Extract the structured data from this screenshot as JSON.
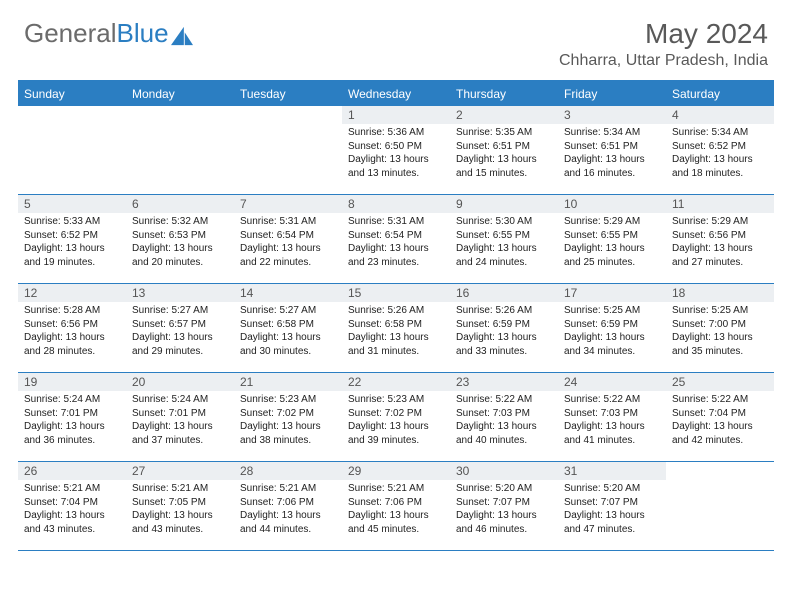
{
  "logo": {
    "text_a": "General",
    "text_b": "Blue"
  },
  "title": {
    "month": "May 2024",
    "location": "Chharra, Uttar Pradesh, India"
  },
  "colors": {
    "accent": "#2b7ec2",
    "header_text": "#ffffff",
    "daynum_bg": "#eceff2",
    "body_text": "#222222",
    "title_text": "#595959",
    "logo_gray": "#6b6b6b"
  },
  "day_headers": [
    "Sunday",
    "Monday",
    "Tuesday",
    "Wednesday",
    "Thursday",
    "Friday",
    "Saturday"
  ],
  "weeks": [
    [
      {
        "day": "",
        "lines": []
      },
      {
        "day": "",
        "lines": []
      },
      {
        "day": "",
        "lines": []
      },
      {
        "day": "1",
        "lines": [
          "Sunrise: 5:36 AM",
          "Sunset: 6:50 PM",
          "Daylight: 13 hours",
          "and 13 minutes."
        ]
      },
      {
        "day": "2",
        "lines": [
          "Sunrise: 5:35 AM",
          "Sunset: 6:51 PM",
          "Daylight: 13 hours",
          "and 15 minutes."
        ]
      },
      {
        "day": "3",
        "lines": [
          "Sunrise: 5:34 AM",
          "Sunset: 6:51 PM",
          "Daylight: 13 hours",
          "and 16 minutes."
        ]
      },
      {
        "day": "4",
        "lines": [
          "Sunrise: 5:34 AM",
          "Sunset: 6:52 PM",
          "Daylight: 13 hours",
          "and 18 minutes."
        ]
      }
    ],
    [
      {
        "day": "5",
        "lines": [
          "Sunrise: 5:33 AM",
          "Sunset: 6:52 PM",
          "Daylight: 13 hours",
          "and 19 minutes."
        ]
      },
      {
        "day": "6",
        "lines": [
          "Sunrise: 5:32 AM",
          "Sunset: 6:53 PM",
          "Daylight: 13 hours",
          "and 20 minutes."
        ]
      },
      {
        "day": "7",
        "lines": [
          "Sunrise: 5:31 AM",
          "Sunset: 6:54 PM",
          "Daylight: 13 hours",
          "and 22 minutes."
        ]
      },
      {
        "day": "8",
        "lines": [
          "Sunrise: 5:31 AM",
          "Sunset: 6:54 PM",
          "Daylight: 13 hours",
          "and 23 minutes."
        ]
      },
      {
        "day": "9",
        "lines": [
          "Sunrise: 5:30 AM",
          "Sunset: 6:55 PM",
          "Daylight: 13 hours",
          "and 24 minutes."
        ]
      },
      {
        "day": "10",
        "lines": [
          "Sunrise: 5:29 AM",
          "Sunset: 6:55 PM",
          "Daylight: 13 hours",
          "and 25 minutes."
        ]
      },
      {
        "day": "11",
        "lines": [
          "Sunrise: 5:29 AM",
          "Sunset: 6:56 PM",
          "Daylight: 13 hours",
          "and 27 minutes."
        ]
      }
    ],
    [
      {
        "day": "12",
        "lines": [
          "Sunrise: 5:28 AM",
          "Sunset: 6:56 PM",
          "Daylight: 13 hours",
          "and 28 minutes."
        ]
      },
      {
        "day": "13",
        "lines": [
          "Sunrise: 5:27 AM",
          "Sunset: 6:57 PM",
          "Daylight: 13 hours",
          "and 29 minutes."
        ]
      },
      {
        "day": "14",
        "lines": [
          "Sunrise: 5:27 AM",
          "Sunset: 6:58 PM",
          "Daylight: 13 hours",
          "and 30 minutes."
        ]
      },
      {
        "day": "15",
        "lines": [
          "Sunrise: 5:26 AM",
          "Sunset: 6:58 PM",
          "Daylight: 13 hours",
          "and 31 minutes."
        ]
      },
      {
        "day": "16",
        "lines": [
          "Sunrise: 5:26 AM",
          "Sunset: 6:59 PM",
          "Daylight: 13 hours",
          "and 33 minutes."
        ]
      },
      {
        "day": "17",
        "lines": [
          "Sunrise: 5:25 AM",
          "Sunset: 6:59 PM",
          "Daylight: 13 hours",
          "and 34 minutes."
        ]
      },
      {
        "day": "18",
        "lines": [
          "Sunrise: 5:25 AM",
          "Sunset: 7:00 PM",
          "Daylight: 13 hours",
          "and 35 minutes."
        ]
      }
    ],
    [
      {
        "day": "19",
        "lines": [
          "Sunrise: 5:24 AM",
          "Sunset: 7:01 PM",
          "Daylight: 13 hours",
          "and 36 minutes."
        ]
      },
      {
        "day": "20",
        "lines": [
          "Sunrise: 5:24 AM",
          "Sunset: 7:01 PM",
          "Daylight: 13 hours",
          "and 37 minutes."
        ]
      },
      {
        "day": "21",
        "lines": [
          "Sunrise: 5:23 AM",
          "Sunset: 7:02 PM",
          "Daylight: 13 hours",
          "and 38 minutes."
        ]
      },
      {
        "day": "22",
        "lines": [
          "Sunrise: 5:23 AM",
          "Sunset: 7:02 PM",
          "Daylight: 13 hours",
          "and 39 minutes."
        ]
      },
      {
        "day": "23",
        "lines": [
          "Sunrise: 5:22 AM",
          "Sunset: 7:03 PM",
          "Daylight: 13 hours",
          "and 40 minutes."
        ]
      },
      {
        "day": "24",
        "lines": [
          "Sunrise: 5:22 AM",
          "Sunset: 7:03 PM",
          "Daylight: 13 hours",
          "and 41 minutes."
        ]
      },
      {
        "day": "25",
        "lines": [
          "Sunrise: 5:22 AM",
          "Sunset: 7:04 PM",
          "Daylight: 13 hours",
          "and 42 minutes."
        ]
      }
    ],
    [
      {
        "day": "26",
        "lines": [
          "Sunrise: 5:21 AM",
          "Sunset: 7:04 PM",
          "Daylight: 13 hours",
          "and 43 minutes."
        ]
      },
      {
        "day": "27",
        "lines": [
          "Sunrise: 5:21 AM",
          "Sunset: 7:05 PM",
          "Daylight: 13 hours",
          "and 43 minutes."
        ]
      },
      {
        "day": "28",
        "lines": [
          "Sunrise: 5:21 AM",
          "Sunset: 7:06 PM",
          "Daylight: 13 hours",
          "and 44 minutes."
        ]
      },
      {
        "day": "29",
        "lines": [
          "Sunrise: 5:21 AM",
          "Sunset: 7:06 PM",
          "Daylight: 13 hours",
          "and 45 minutes."
        ]
      },
      {
        "day": "30",
        "lines": [
          "Sunrise: 5:20 AM",
          "Sunset: 7:07 PM",
          "Daylight: 13 hours",
          "and 46 minutes."
        ]
      },
      {
        "day": "31",
        "lines": [
          "Sunrise: 5:20 AM",
          "Sunset: 7:07 PM",
          "Daylight: 13 hours",
          "and 47 minutes."
        ]
      },
      {
        "day": "",
        "lines": []
      }
    ]
  ]
}
